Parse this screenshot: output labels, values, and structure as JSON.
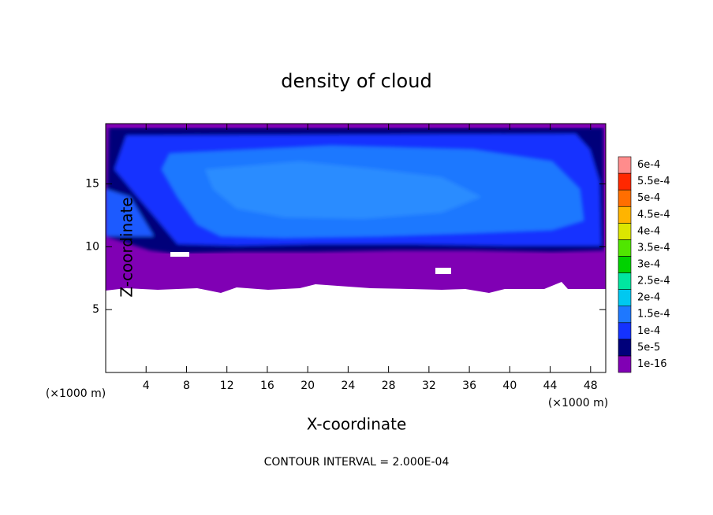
{
  "chart_data": {
    "type": "contour",
    "title": "density of cloud",
    "xlabel": "X-coordinate",
    "ylabel": "Z-coordinate",
    "xunit": "(×1000 m)",
    "yunit": "(×1000 m)",
    "footer": "CONTOUR INTERVAL = 2.000E-04",
    "xlim": [
      0,
      49.5
    ],
    "ylim": [
      0,
      19.8
    ],
    "xticks": [
      4,
      8,
      12,
      16,
      20,
      24,
      28,
      32,
      36,
      40,
      44,
      48
    ],
    "yticks": [
      5,
      10,
      15
    ],
    "colorbar": {
      "levels": [
        {
          "value": 1e-16,
          "label": "1e-16"
        },
        {
          "value": 5e-05,
          "label": "5e-5"
        },
        {
          "value": 0.0001,
          "label": "1e-4"
        },
        {
          "value": 0.00015,
          "label": "1.5e-4"
        },
        {
          "value": 0.0002,
          "label": "2e-4"
        },
        {
          "value": 0.00025,
          "label": "2.5e-4"
        },
        {
          "value": 0.0003,
          "label": "3e-4"
        },
        {
          "value": 0.00035,
          "label": "3.5e-4"
        },
        {
          "value": 0.0004,
          "label": "4e-4"
        },
        {
          "value": 0.00045,
          "label": "4.5e-4"
        },
        {
          "value": 0.0005,
          "label": "5e-4"
        },
        {
          "value": 0.00055,
          "label": "5.5e-4"
        },
        {
          "value": 0.0006,
          "label": "6e-4"
        }
      ],
      "colors": [
        "#8000b4",
        "#00007a",
        "#1432ff",
        "#1e78ff",
        "#00c8f0",
        "#00e6a0",
        "#00d200",
        "#50e600",
        "#dce600",
        "#ffb400",
        "#ff6e00",
        "#ff2800",
        "#ff8c8c"
      ]
    }
  }
}
